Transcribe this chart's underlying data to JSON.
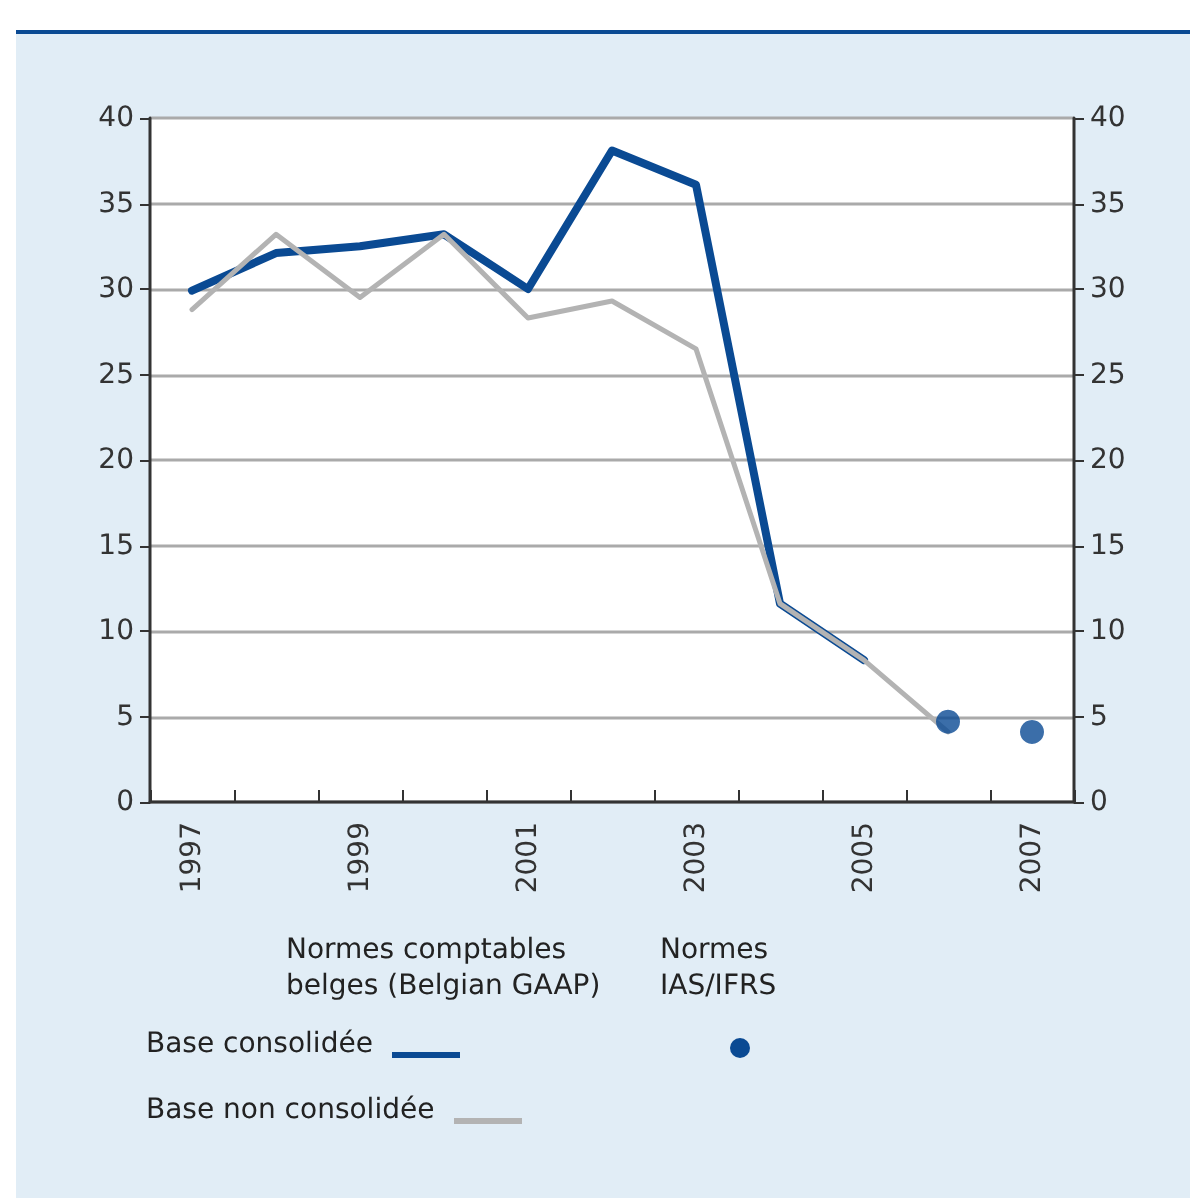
{
  "chart_data": {
    "type": "line",
    "categories": [
      "1997",
      null,
      "1999",
      null,
      "2001",
      null,
      "2003",
      null,
      "2005",
      null,
      "2007"
    ],
    "series": [
      {
        "name": "Base consolidée",
        "color": "#0a4a93",
        "values": [
          29.9,
          32.1,
          32.5,
          33.2,
          30,
          38.1,
          36.1,
          11.6,
          8.3,
          null,
          null
        ]
      },
      {
        "name": "Base non consolidée",
        "color": "#b3b3b3",
        "values": [
          28.8,
          33.2,
          29.5,
          33.2,
          28.3,
          29.3,
          26.5,
          11.6,
          8.3,
          4.1,
          null
        ]
      },
      {
        "type": "scatter",
        "marker": "circle",
        "color": "#0a4a93",
        "values": [
          null,
          null,
          null,
          null,
          null,
          null,
          null,
          null,
          null,
          4.7,
          4.1
        ]
      }
    ],
    "annotations": [
      "Normes comptables belges (Belgian GAAP)",
      "Normes IAS/IFRS"
    ],
    "ylim": [
      0,
      40
    ],
    "yticks": [
      0,
      5,
      10,
      15,
      20,
      25,
      30,
      35,
      40
    ],
    "y2lim": [
      0,
      40
    ],
    "y2ticks": [
      0,
      5,
      10,
      15,
      20,
      25,
      30,
      35,
      40
    ],
    "grid": "y",
    "legend": "bottom",
    "marker": "none",
    "line_style": "solid"
  }
}
